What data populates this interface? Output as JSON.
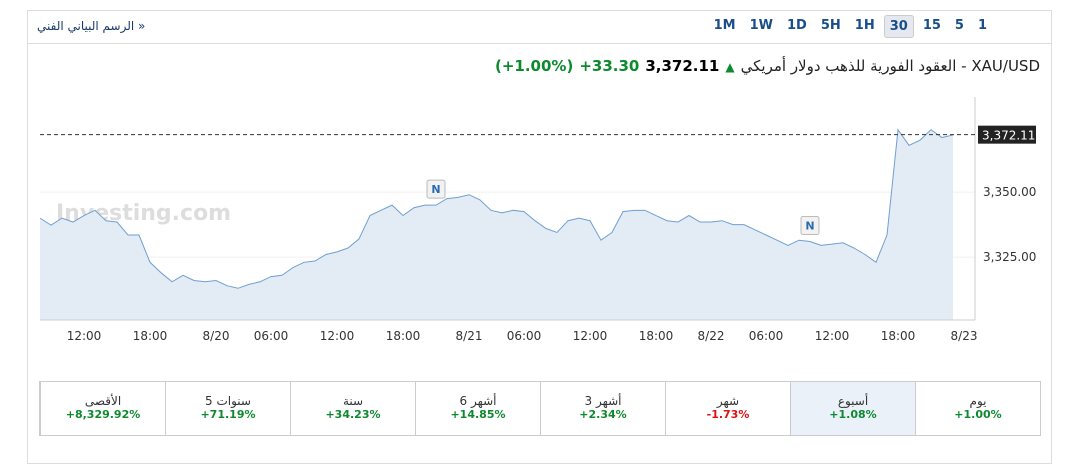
{
  "header": {
    "link": "الرسم البياني الفني",
    "link_arrow": "»",
    "intervals": [
      "1M",
      "1W",
      "1D",
      "5H",
      "1H",
      "30",
      "15",
      "5",
      "1"
    ],
    "selected_interval": "30"
  },
  "quote": {
    "title": "XAU/USD - العقود الفورية للذهب دولار أمريكي",
    "price": "3,372.11",
    "change": "+33.30",
    "change_pct": "(+1.00%)"
  },
  "chart_data": {
    "type": "area",
    "watermark": "Investing.com",
    "color": "#6f9fd0",
    "fill": "#e3ecf5",
    "categories": [
      null,
      null,
      null,
      null,
      "12:00",
      null,
      null,
      null,
      null,
      null,
      "18:00",
      null,
      null,
      null,
      null,
      null,
      "8/20",
      null,
      null,
      null,
      null,
      "06:00",
      null,
      null,
      null,
      null,
      null,
      "12:00",
      null,
      null,
      null,
      null,
      null,
      "18:00",
      null,
      null,
      null,
      null,
      null,
      "8/21",
      null,
      null,
      null,
      null,
      "06:00",
      null,
      null,
      null,
      null,
      null,
      "12:00",
      null,
      null,
      null,
      null,
      null,
      "18:00",
      null,
      null,
      null,
      null,
      "8/22",
      null,
      null,
      null,
      null,
      "06:00",
      null,
      null,
      null,
      null,
      null,
      "12:00",
      null,
      null,
      null,
      null,
      null,
      "18:00",
      null,
      null,
      null,
      null,
      null,
      "8/23"
    ],
    "values": [
      3340,
      3337.3,
      3340,
      3338.5,
      3341,
      3343,
      3339,
      3338.5,
      3333.5,
      3333.5,
      3323,
      3319,
      3315.5,
      3318,
      3316,
      3315.5,
      3316,
      3314,
      3313,
      3314.5,
      3315.5,
      3317.5,
      3318,
      3321,
      3323,
      3323.5,
      3326,
      3327,
      3328.5,
      3332,
      3341,
      3343,
      3345,
      3341,
      3344,
      3345,
      3345,
      3347.5,
      3348,
      3349,
      3347,
      3343,
      3342,
      3343,
      3342.5,
      3339,
      3336,
      3334.5,
      3339,
      3340,
      3339,
      3331.5,
      3334.5,
      3342.5,
      3343,
      3343,
      3341,
      3339,
      3338.5,
      3341,
      3338.5,
      3338.5,
      3339,
      3337.5,
      3337.5,
      3335.5,
      3333.5,
      3331.5,
      3329.5,
      3331.5,
      3331,
      3329.5,
      3330,
      3330.5,
      3328.5,
      3326,
      3323,
      3333.5,
      3374,
      3368,
      3370,
      3374,
      3371,
      3372,
      null
    ],
    "ylim": [
      3300.8,
      3386.6
    ],
    "yticks": [
      {
        "value": 3325,
        "label": "3,325.00"
      },
      {
        "value": 3350,
        "label": "3,350.00"
      }
    ],
    "last_price": {
      "value": 3372.11,
      "label": "3,372.11"
    },
    "annotations": [
      {
        "text": "N",
        "category": 36
      },
      {
        "text": "N",
        "category": 70
      }
    ]
  },
  "performance": [
    {
      "label": "يوم",
      "value": "+1.00%"
    },
    {
      "label": "أسبوع",
      "value": "+1.08%"
    },
    {
      "label": "شهر",
      "value": "-1.73%"
    },
    {
      "label": "3 أشهر",
      "value": "+2.34%"
    },
    {
      "label": "6 أشهر",
      "value": "+14.85%"
    },
    {
      "label": "سنة",
      "value": "+34.23%"
    },
    {
      "label": "5 سنوات",
      "value": "+71.19%"
    },
    {
      "label": "الأقصى",
      "value": "+8,329.92%"
    }
  ]
}
